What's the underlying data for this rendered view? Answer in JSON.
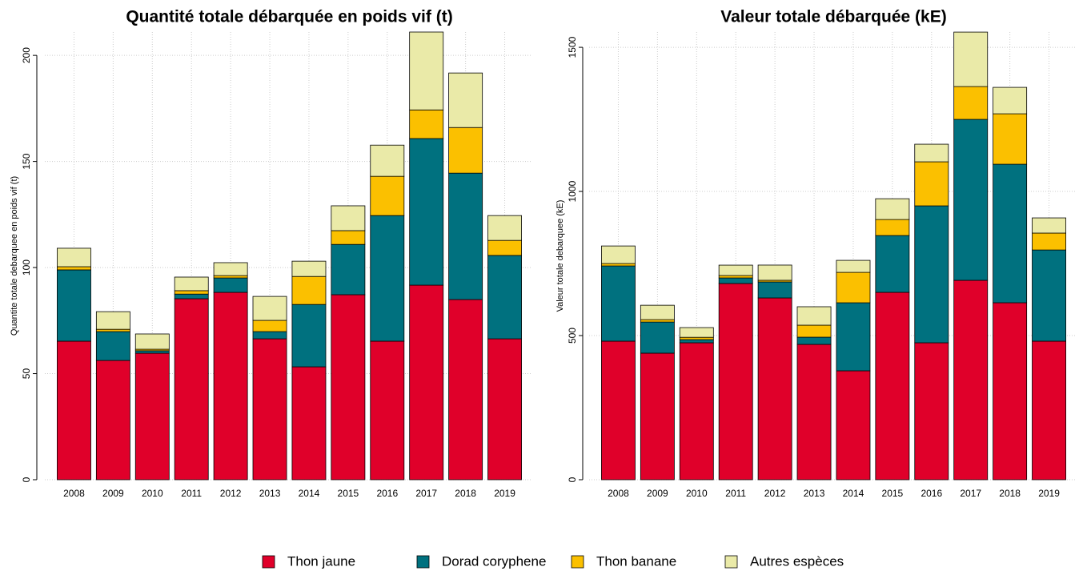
{
  "chart_data": [
    {
      "type": "bar",
      "stacked": true,
      "title": "Quantité totale débarquée en poids vif (t)",
      "y_label": "Quantite totale debarquee en poids vif (t)",
      "categories": [
        "2008",
        "2009",
        "2010",
        "2011",
        "2012",
        "2013",
        "2014",
        "2015",
        "2016",
        "2017",
        "2018",
        "2019"
      ],
      "series": [
        {
          "name": "Thon jaune",
          "color": "#e0002a",
          "values": [
            65.3,
            56.2,
            59.6,
            85.3,
            88.3,
            66.4,
            53.2,
            87.2,
            65.3,
            91.7,
            84.9,
            66.4
          ]
        },
        {
          "name": "Dorad coryphene",
          "color": "#00717f",
          "values": [
            33.6,
            13.6,
            1.2,
            2.2,
            6.8,
            3.4,
            29.4,
            23.7,
            59.2,
            69.1,
            59.6,
            39.3
          ]
        },
        {
          "name": "Thon banane",
          "color": "#fbc000",
          "values": [
            1.5,
            1.1,
            0.7,
            1.6,
            1.1,
            5.3,
            13.2,
            6.5,
            18.5,
            13.5,
            21.5,
            7.1
          ]
        },
        {
          "name": "Autres espèces",
          "color": "#eaeaa8",
          "values": [
            8.7,
            8.3,
            7.2,
            6.4,
            6.1,
            11.3,
            7.2,
            11.7,
            14.7,
            36.7,
            25.7,
            11.7
          ]
        }
      ],
      "ylim": [
        0,
        211
      ],
      "yticks": [
        0,
        50,
        100,
        150,
        200
      ],
      "grid": true
    },
    {
      "type": "bar",
      "stacked": true,
      "title": "Valeur totale débarquée (kE)",
      "y_label": "Valeur totale debarquee (kE)",
      "categories": [
        "2008",
        "2009",
        "2010",
        "2011",
        "2012",
        "2013",
        "2014",
        "2015",
        "2016",
        "2017",
        "2018",
        "2019"
      ],
      "series": [
        {
          "name": "Thon jaune",
          "color": "#e0002a",
          "values": [
            480.6,
            439,
            475,
            680.6,
            630.6,
            469.4,
            377.8,
            650,
            475,
            691.7,
            613.9,
            480.6
          ]
        },
        {
          "name": "Dorad coryphene",
          "color": "#00717f",
          "values": [
            261,
            108,
            11,
            19.4,
            55.6,
            25,
            236,
            197,
            475,
            558.3,
            480.5,
            316.4
          ]
        },
        {
          "name": "Thon banane",
          "color": "#fbc000",
          "values": [
            8.3,
            8.3,
            8,
            8.3,
            5.6,
            41.7,
            105.5,
            55.6,
            152.8,
            113.9,
            175,
            58.6
          ]
        },
        {
          "name": "Autres espèces",
          "color": "#eaeaa8",
          "values": [
            61,
            50,
            33.7,
            36.1,
            52.8,
            64,
            41.7,
            72.2,
            61.1,
            188.9,
            91.7,
            52.7
          ]
        }
      ],
      "ylim": [
        0,
        1553
      ],
      "yticks": [
        0,
        500,
        1000,
        1500
      ],
      "grid": true
    }
  ]
}
